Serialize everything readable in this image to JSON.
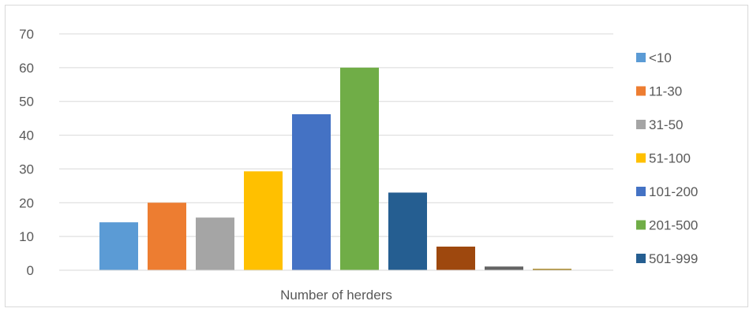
{
  "chart_data": {
    "type": "bar",
    "title": "",
    "xlabel": "Number of herders",
    "ylabel": "",
    "ylim": [
      0,
      70
    ],
    "yticks": [
      0,
      10,
      20,
      30,
      40,
      50,
      60,
      70
    ],
    "grid": true,
    "legend_position": "right",
    "categories": [
      "<10",
      "11-30",
      "31-50",
      "51-100",
      "101-200",
      "201-500",
      "501-999",
      "",
      "",
      ""
    ],
    "values": [
      14.2,
      20.0,
      15.6,
      29.3,
      46.2,
      60.0,
      23.0,
      7.0,
      1.1,
      0.4
    ],
    "colors": [
      "#5b9bd5",
      "#ed7d31",
      "#a5a5a5",
      "#ffc000",
      "#4472c4",
      "#70ad47",
      "#255e91",
      "#9e480e",
      "#636363",
      "#997300"
    ],
    "legend": [
      {
        "label": "<10",
        "color": "#5b9bd5"
      },
      {
        "label": "11-30",
        "color": "#ed7d31"
      },
      {
        "label": "31-50",
        "color": "#a5a5a5"
      },
      {
        "label": "51-100",
        "color": "#ffc000"
      },
      {
        "label": "101-200",
        "color": "#4472c4"
      },
      {
        "label": "201-500",
        "color": "#70ad47"
      },
      {
        "label": "501-999",
        "color": "#255e91"
      }
    ]
  }
}
